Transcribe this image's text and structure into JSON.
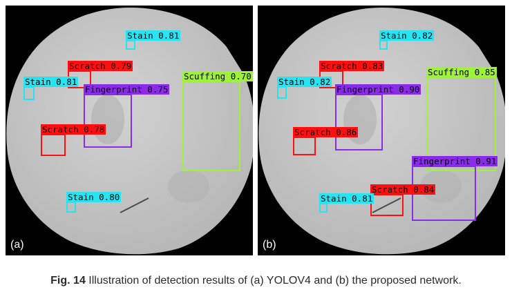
{
  "colors": {
    "stain": "#27e4f2",
    "scratch": "#ff0f0f",
    "fingerprint": "#8a2be8",
    "scuffing": "#9ef23a",
    "surface": "#c6c6c6",
    "background": "#000000"
  },
  "panels": [
    {
      "label": "(a)",
      "detections": [
        {
          "cls": "stain",
          "text": "Stain 0.81"
        },
        {
          "cls": "scratch",
          "text": "Scratch 0.79"
        },
        {
          "cls": "stain",
          "text": "Stain 0.81"
        },
        {
          "cls": "fingerprint",
          "text": "Fingerprint 0.75"
        },
        {
          "cls": "scuffing",
          "text": "Scuffing 0.70"
        },
        {
          "cls": "scratch",
          "text": "Scratch 0.78"
        },
        {
          "cls": "stain",
          "text": "Stain 0.80"
        }
      ]
    },
    {
      "label": "(b)",
      "detections": [
        {
          "cls": "stain",
          "text": "Stain 0.82"
        },
        {
          "cls": "scratch",
          "text": "Scratch 0.83"
        },
        {
          "cls": "stain",
          "text": "Stain 0.82"
        },
        {
          "cls": "fingerprint",
          "text": "Fingerprint 0.90"
        },
        {
          "cls": "scuffing",
          "text": "Scuffing 0.85"
        },
        {
          "cls": "scratch",
          "text": "Scratch 0.86"
        },
        {
          "cls": "fingerprint",
          "text": "Fingerprint 0.91"
        },
        {
          "cls": "scratch",
          "text": "Scratch 0.84"
        },
        {
          "cls": "stain",
          "text": "Stain 0.81"
        }
      ]
    }
  ],
  "caption": {
    "label": "Fig. 14",
    "text": " Illustration of detection results of (a) YOLOV4 and (b) the proposed network."
  }
}
